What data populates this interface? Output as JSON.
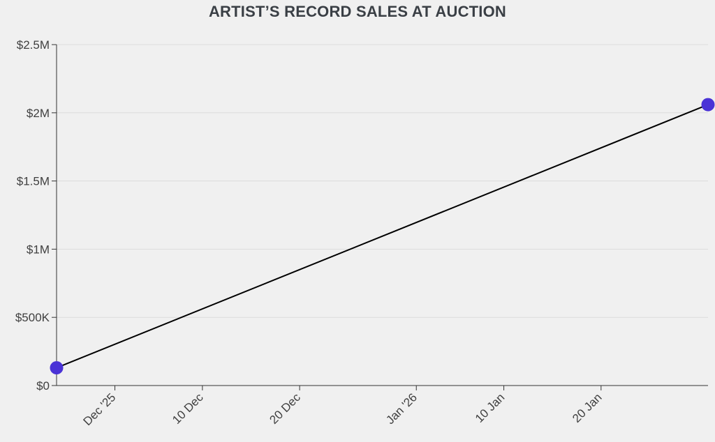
{
  "chart_data": {
    "type": "line",
    "title": "ARTIST’S RECORD SALES AT AUCTION",
    "xlabel": "",
    "ylabel": "",
    "xlim": [
      "2025-11-25",
      "2026-01-31"
    ],
    "ylim": [
      0,
      2500000
    ],
    "grid": "horizontal",
    "x_ticks": [
      {
        "date": "2025-12-01",
        "label": "Dec '25"
      },
      {
        "date": "2025-12-10",
        "label": "10 Dec"
      },
      {
        "date": "2025-12-20",
        "label": "20 Dec"
      },
      {
        "date": "2026-01-01",
        "label": "Jan '26"
      },
      {
        "date": "2026-01-10",
        "label": "10 Jan"
      },
      {
        "date": "2026-01-20",
        "label": "20 Jan"
      }
    ],
    "y_ticks": [
      {
        "value": 0,
        "label": "$0"
      },
      {
        "value": 500000,
        "label": "$500K"
      },
      {
        "value": 1000000,
        "label": "$1M"
      },
      {
        "value": 1500000,
        "label": "$1.5M"
      },
      {
        "value": 2000000,
        "label": "$2M"
      },
      {
        "value": 2500000,
        "label": "$2.5M"
      }
    ],
    "series": [
      {
        "line_color": "#000000",
        "marker_color": "#4a33d6",
        "points": [
          {
            "x": "2025-11-25",
            "y": 130000
          },
          {
            "x": "2026-01-31",
            "y": 2060000
          }
        ]
      }
    ]
  }
}
